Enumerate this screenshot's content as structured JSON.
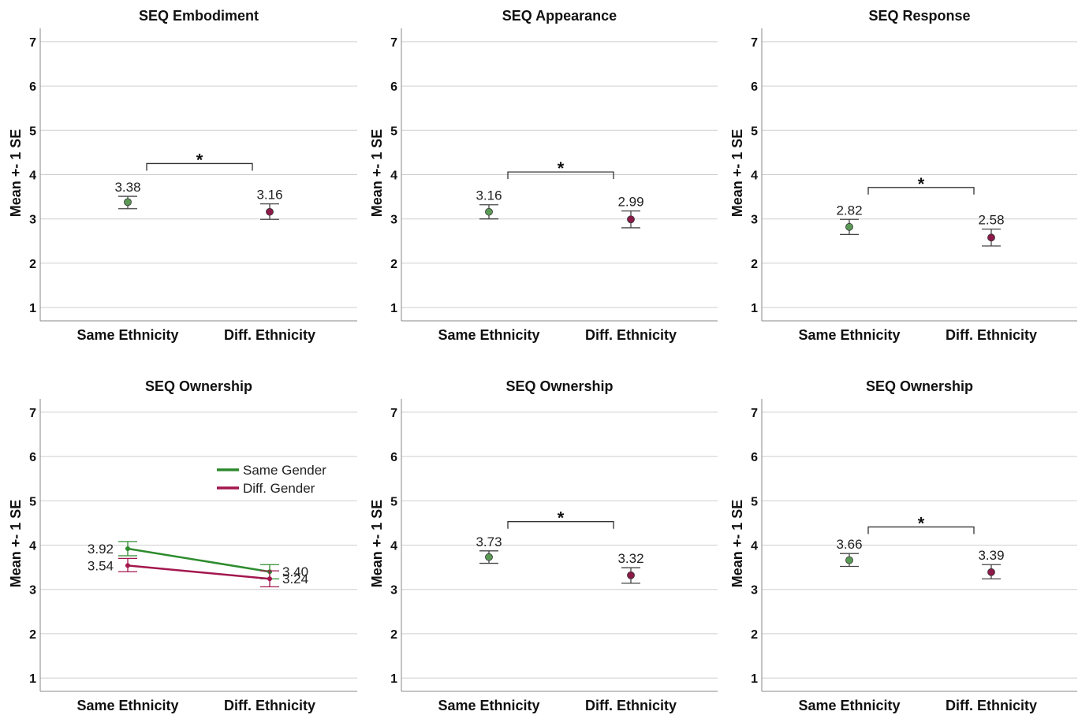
{
  "chart_data": [
    {
      "type": "scatter",
      "title": "SEQ Embodiment",
      "ylabel": "Mean +- 1 SE",
      "categories": [
        "Same Ethnicity",
        "Diff. Ethnicity"
      ],
      "y_ticks": [
        "1",
        "2",
        "3",
        "4",
        "5",
        "6",
        "7"
      ],
      "ylim": [
        0.7,
        7.3
      ],
      "grid": true,
      "points": [
        {
          "category": "Same Ethnicity",
          "mean": 3.38,
          "label": "3.38",
          "se_low": 3.23,
          "se_high": 3.51,
          "color": "#5a9a55"
        },
        {
          "category": "Diff. Ethnicity",
          "mean": 3.16,
          "label": "3.16",
          "se_low": 2.99,
          "se_high": 3.34,
          "color": "#8b1a48"
        }
      ],
      "significance": {
        "label": "*",
        "y": 4.25
      }
    },
    {
      "type": "scatter",
      "title": "SEQ Appearance",
      "ylabel": "Mean +- 1 SE",
      "categories": [
        "Same Ethnicity",
        "Diff. Ethnicity"
      ],
      "y_ticks": [
        "1",
        "2",
        "3",
        "4",
        "5",
        "6",
        "7"
      ],
      "ylim": [
        0.7,
        7.3
      ],
      "grid": true,
      "points": [
        {
          "category": "Same Ethnicity",
          "mean": 3.16,
          "label": "3.16",
          "se_low": 3.0,
          "se_high": 3.32,
          "color": "#5a9a55"
        },
        {
          "category": "Diff. Ethnicity",
          "mean": 2.99,
          "label": "2.99",
          "se_low": 2.8,
          "se_high": 3.18,
          "color": "#8b1a48"
        }
      ],
      "significance": {
        "label": "*",
        "y": 4.06
      }
    },
    {
      "type": "scatter",
      "title": "SEQ Response",
      "ylabel": "Mean +- 1 SE",
      "categories": [
        "Same Ethnicity",
        "Diff. Ethnicity"
      ],
      "y_ticks": [
        "1",
        "2",
        "3",
        "4",
        "5",
        "6",
        "7"
      ],
      "ylim": [
        0.7,
        7.3
      ],
      "grid": true,
      "points": [
        {
          "category": "Same Ethnicity",
          "mean": 2.82,
          "label": "2.82",
          "se_low": 2.65,
          "se_high": 2.99,
          "color": "#5a9a55"
        },
        {
          "category": "Diff. Ethnicity",
          "mean": 2.58,
          "label": "2.58",
          "se_low": 2.39,
          "se_high": 2.77,
          "color": "#8b1a48"
        }
      ],
      "significance": {
        "label": "*",
        "y": 3.71
      }
    },
    {
      "type": "line",
      "title": "SEQ Ownership",
      "ylabel": "Mean +- 1 SE",
      "categories": [
        "Same Ethnicity",
        "Diff. Ethnicity"
      ],
      "y_ticks": [
        "1",
        "2",
        "3",
        "4",
        "5",
        "6",
        "7"
      ],
      "ylim": [
        0.7,
        7.3
      ],
      "grid": true,
      "legend_position": "top-right",
      "series": [
        {
          "name": "Same Gender",
          "color": "#2e8b2e",
          "values": [
            3.92,
            3.4
          ],
          "labels": [
            "3.92",
            "3.40"
          ],
          "se_low": [
            3.76,
            3.24
          ],
          "se_high": [
            4.08,
            3.56
          ]
        },
        {
          "name": "Diff. Gender",
          "color": "#a3174e",
          "values": [
            3.54,
            3.24
          ],
          "labels": [
            "3.54",
            "3.24"
          ],
          "se_low": [
            3.4,
            3.06
          ],
          "se_high": [
            3.7,
            3.42
          ]
        }
      ]
    },
    {
      "type": "scatter",
      "title": "SEQ Ownership",
      "ylabel": "Mean +- 1 SE",
      "categories": [
        "Same Ethnicity",
        "Diff. Ethnicity"
      ],
      "y_ticks": [
        "1",
        "2",
        "3",
        "4",
        "5",
        "6",
        "7"
      ],
      "ylim": [
        0.7,
        7.3
      ],
      "grid": true,
      "points": [
        {
          "category": "Same Ethnicity",
          "mean": 3.73,
          "label": "3.73",
          "se_low": 3.59,
          "se_high": 3.87,
          "color": "#5a9a55"
        },
        {
          "category": "Diff. Ethnicity",
          "mean": 3.32,
          "label": "3.32",
          "se_low": 3.14,
          "se_high": 3.49,
          "color": "#8b1a48"
        }
      ],
      "significance": {
        "label": "*",
        "y": 4.53
      }
    },
    {
      "type": "scatter",
      "title": "SEQ Ownership",
      "ylabel": "Mean +- 1 SE",
      "categories": [
        "Same Ethnicity",
        "Diff. Ethnicity"
      ],
      "y_ticks": [
        "1",
        "2",
        "3",
        "4",
        "5",
        "6",
        "7"
      ],
      "ylim": [
        0.7,
        7.3
      ],
      "grid": true,
      "points": [
        {
          "category": "Same Ethnicity",
          "mean": 3.66,
          "label": "3.66",
          "se_low": 3.52,
          "se_high": 3.81,
          "color": "#5a9a55"
        },
        {
          "category": "Diff. Ethnicity",
          "mean": 3.39,
          "label": "3.39",
          "se_low": 3.24,
          "se_high": 3.56,
          "color": "#8b1a48"
        }
      ],
      "significance": {
        "label": "*",
        "y": 4.41
      }
    }
  ]
}
